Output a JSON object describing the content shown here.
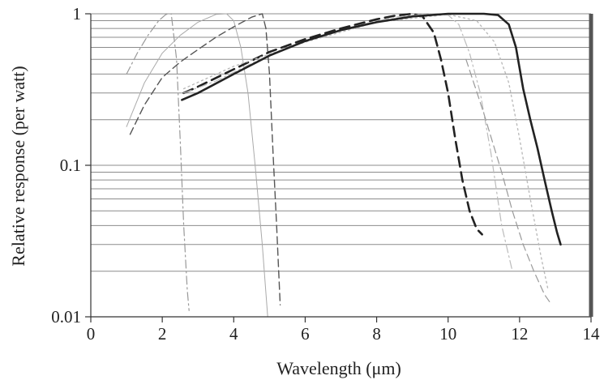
{
  "chart_data": {
    "type": "line",
    "title": "",
    "xlabel": "Wavelength (μm)",
    "ylabel": "Relative response (per watt)",
    "xlim": [
      0,
      14
    ],
    "ylim": [
      0.01,
      1
    ],
    "yscale": "log",
    "grid": "horizontal minor lines",
    "legend": "none",
    "x_ticks": [
      {
        "value": 0,
        "label": "0"
      },
      {
        "value": 2,
        "label": "2"
      },
      {
        "value": 4,
        "label": "4"
      },
      {
        "value": 6,
        "label": "6"
      },
      {
        "value": 8,
        "label": "8"
      },
      {
        "value": 10,
        "label": "10"
      },
      {
        "value": 12,
        "label": "12"
      },
      {
        "value": 14,
        "label": "14"
      }
    ],
    "y_ticks": [
      {
        "value": 0.01,
        "label": "0.01"
      },
      {
        "value": 0.1,
        "label": "0.1"
      },
      {
        "value": 1,
        "label": "1"
      }
    ],
    "series": [
      {
        "color": "#999999",
        "style": "dashdot",
        "width": 1.2,
        "x": [
          1.0,
          1.3,
          1.6,
          1.9,
          2.1,
          2.25,
          2.4,
          2.5,
          2.6,
          2.7,
          2.75
        ],
        "y": [
          0.4,
          0.55,
          0.72,
          0.9,
          0.99,
          1.0,
          0.5,
          0.15,
          0.04,
          0.015,
          0.011
        ]
      },
      {
        "color": "#aaaaaa",
        "style": "solid",
        "width": 1.0,
        "x": [
          1.0,
          1.5,
          2.0,
          2.5,
          3.0,
          3.5,
          3.8,
          4.0,
          4.2,
          4.4,
          4.6,
          4.8,
          4.95
        ],
        "y": [
          0.18,
          0.35,
          0.55,
          0.72,
          0.88,
          0.99,
          1.0,
          0.9,
          0.6,
          0.3,
          0.1,
          0.03,
          0.01
        ]
      },
      {
        "color": "#555555",
        "style": "dashed",
        "width": 1.4,
        "x": [
          1.1,
          1.5,
          2.0,
          2.5,
          3.0,
          3.5,
          4.0,
          4.5,
          4.8,
          4.9,
          5.0,
          5.1,
          5.2,
          5.3
        ],
        "y": [
          0.16,
          0.25,
          0.38,
          0.48,
          0.58,
          0.7,
          0.82,
          0.95,
          1.0,
          0.8,
          0.4,
          0.12,
          0.04,
          0.012
        ]
      },
      {
        "color": "#222222",
        "style": "dashed-bold",
        "width": 2.6,
        "x": [
          2.6,
          3.0,
          4.0,
          5.0,
          6.0,
          7.0,
          8.0,
          8.5,
          9.0,
          9.3,
          9.6,
          9.8,
          10.0,
          10.2,
          10.4,
          10.6,
          10.8,
          10.95
        ],
        "y": [
          0.3,
          0.33,
          0.43,
          0.56,
          0.68,
          0.8,
          0.92,
          0.97,
          1.0,
          0.95,
          0.75,
          0.5,
          0.3,
          0.15,
          0.08,
          0.05,
          0.038,
          0.035
        ]
      },
      {
        "color": "#bbbbbb",
        "style": "dashdot",
        "width": 1.2,
        "x": [
          2.6,
          3.5,
          4.5,
          5.5,
          6.5,
          7.5,
          8.5,
          9.5,
          10.0,
          10.3,
          10.6,
          10.9,
          11.2,
          11.5,
          11.8
        ],
        "y": [
          0.3,
          0.36,
          0.47,
          0.6,
          0.72,
          0.84,
          0.95,
          1.0,
          0.98,
          0.85,
          0.55,
          0.3,
          0.12,
          0.04,
          0.02
        ]
      },
      {
        "color": "#bbbbbb",
        "style": "dotted",
        "width": 1.4,
        "x": [
          2.6,
          4.0,
          6.0,
          8.0,
          10.0,
          10.8,
          11.3,
          11.7,
          12.0,
          12.3,
          12.6,
          12.8
        ],
        "y": [
          0.32,
          0.45,
          0.65,
          0.88,
          0.99,
          0.9,
          0.65,
          0.35,
          0.15,
          0.06,
          0.025,
          0.015
        ]
      },
      {
        "color": "#222222",
        "style": "solid",
        "width": 2.6,
        "x": [
          2.55,
          3.0,
          4.0,
          5.0,
          6.0,
          7.0,
          8.0,
          9.0,
          10.0,
          11.0,
          11.4,
          11.7,
          11.9,
          12.1,
          12.3,
          12.5,
          12.7,
          12.9,
          13.05,
          13.15
        ],
        "y": [
          0.27,
          0.3,
          0.4,
          0.53,
          0.66,
          0.78,
          0.88,
          0.96,
          1.0,
          1.0,
          0.98,
          0.85,
          0.6,
          0.32,
          0.2,
          0.13,
          0.08,
          0.05,
          0.036,
          0.03
        ]
      },
      {
        "color": "#999999",
        "style": "dashed",
        "width": 1.2,
        "x": [
          10.5,
          11.0,
          11.5,
          11.8,
          12.1,
          12.4,
          12.7,
          12.9
        ],
        "y": [
          0.5,
          0.22,
          0.09,
          0.05,
          0.03,
          0.02,
          0.014,
          0.012
        ]
      }
    ]
  }
}
